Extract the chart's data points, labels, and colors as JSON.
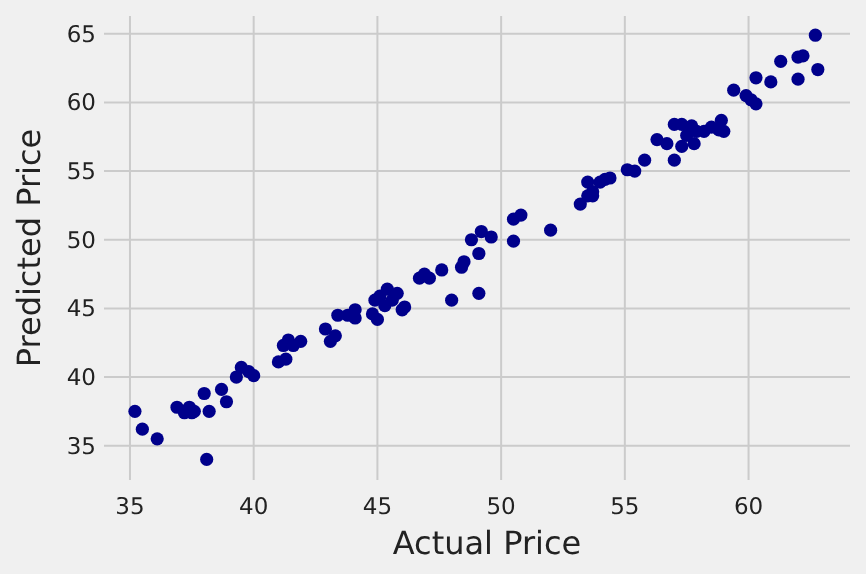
{
  "chart_data": {
    "type": "scatter",
    "xlabel": "Actual Price",
    "ylabel": "Predicted Price",
    "xlim": [
      33.95,
      64.1
    ],
    "ylim": [
      32.5,
      66.3
    ],
    "xticks": [
      35,
      40,
      45,
      50,
      55,
      60
    ],
    "yticks": [
      35,
      40,
      45,
      50,
      55,
      60,
      65
    ],
    "grid": true,
    "marker": "circle",
    "series": [
      {
        "color": "#00008b",
        "x": [
          35.2,
          35.5,
          36.1,
          36.9,
          37.2,
          37.4,
          37.5,
          37.6,
          38.2,
          38.1,
          38.0,
          38.7,
          38.9,
          39.3,
          39.5,
          39.8,
          40.0,
          41.0,
          41.3,
          41.2,
          41.4,
          41.9,
          41.6,
          42.9,
          43.1,
          43.3,
          43.4,
          43.8,
          44.1,
          44.1,
          44.8,
          45.0,
          44.9,
          45.1,
          45.4,
          45.3,
          45.6,
          45.8,
          46.1,
          46.0,
          46.7,
          46.9,
          47.1,
          47.6,
          48.0,
          48.4,
          48.5,
          48.8,
          49.1,
          49.2,
          49.1,
          49.6,
          50.5,
          50.8,
          50.5,
          52.0,
          53.2,
          53.5,
          53.7,
          53.5,
          53.7,
          54.0,
          54.2,
          54.4,
          55.1,
          55.4,
          55.8,
          56.3,
          56.7,
          57.0,
          57.0,
          57.3,
          57.5,
          57.3,
          57.7,
          57.8,
          57.9,
          58.2,
          58.5,
          58.8,
          59.0,
          58.9,
          59.4,
          59.9,
          60.1,
          60.3,
          60.3,
          60.9,
          61.3,
          62.0,
          62.2,
          62.0,
          62.7,
          62.8
        ],
        "values": [
          37.5,
          36.2,
          35.5,
          37.8,
          37.4,
          37.8,
          37.4,
          37.5,
          37.5,
          34.0,
          38.8,
          39.1,
          38.2,
          40.0,
          40.7,
          40.4,
          40.1,
          41.1,
          41.3,
          42.3,
          42.7,
          42.6,
          42.3,
          43.5,
          42.6,
          43.0,
          44.5,
          44.5,
          44.3,
          44.9,
          44.6,
          44.2,
          45.6,
          45.9,
          46.4,
          45.2,
          45.6,
          46.1,
          45.1,
          44.9,
          47.2,
          47.5,
          47.2,
          47.8,
          45.6,
          48.0,
          48.4,
          50.0,
          49.0,
          50.6,
          46.1,
          50.2,
          51.5,
          51.8,
          49.9,
          50.7,
          52.6,
          53.2,
          53.5,
          54.2,
          53.2,
          54.2,
          54.4,
          54.5,
          55.1,
          55.0,
          55.8,
          57.3,
          57.0,
          55.8,
          58.4,
          58.4,
          57.6,
          56.8,
          58.3,
          57.0,
          57.9,
          57.9,
          58.2,
          58.0,
          57.9,
          58.7,
          60.9,
          60.5,
          60.2,
          59.9,
          61.8,
          61.5,
          63.0,
          63.3,
          63.4,
          61.7,
          64.9,
          62.4
        ]
      }
    ]
  }
}
